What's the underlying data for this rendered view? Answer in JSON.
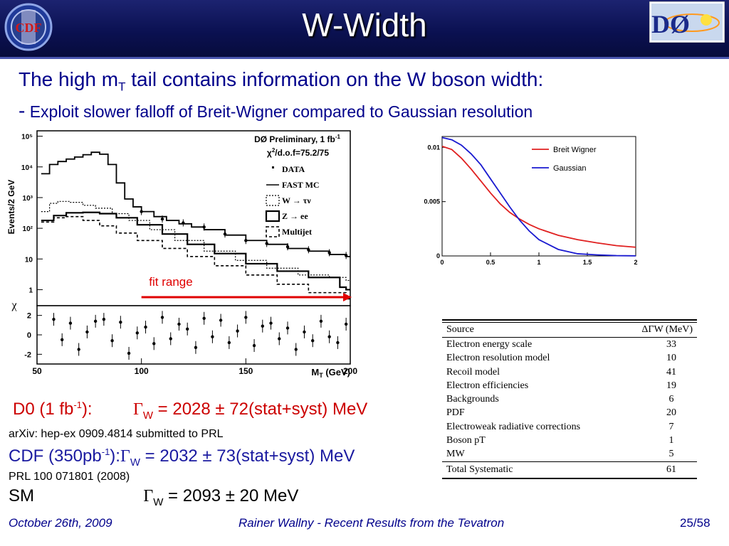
{
  "slide": {
    "title": "W-Width",
    "logo_left_text": "CDF",
    "logo_right_text": "DØ",
    "intro_line1_pre": "The high m",
    "intro_line1_sub": "T",
    "intro_line1_post": " tail contains information on the W boson width:",
    "intro_dash": "-",
    "intro_line2": "Exploit slower falloff of Breit-Wigner compared to Gaussian resolution",
    "fit_range_label": "fit range"
  },
  "results": {
    "d0_label": "D0 (1 fb",
    "d0_label_sup": "-1",
    "d0_label_end": "):",
    "d0_gamma": "Γ",
    "d0_gamma_sub": "W",
    "d0_value": " = 2028 ± 72(stat+syst) MeV",
    "d0_ref": "arXiv: hep-ex 0909.4814 submitted to PRL",
    "cdf_label": "CDF (350pb",
    "cdf_label_sup": "-1",
    "cdf_label_end": "):",
    "cdf_gamma": "Γ",
    "cdf_gamma_sub": "W",
    "cdf_value": " = 2032 ± 73(stat+syst) MeV",
    "cdf_ref": "PRL 100 071801 (2008)",
    "sm_label": "SM",
    "sm_gamma": "Γ",
    "sm_gamma_sub": "W",
    "sm_value": " = 2093 ± 20 MeV"
  },
  "footer": {
    "date": "October 26th, 2009",
    "center": "Rainer Wallny - Recent Results from the Tevatron",
    "page": "25/58"
  },
  "colors": {
    "title_bar": "#0b1152",
    "intro_text": "#00008b",
    "d0_result": "#cc0000",
    "cdf_result": "#1a1aa0",
    "breit_wigner": "#e02020",
    "gaussian": "#1a1ad0",
    "fit_arrow": "#e00000"
  },
  "chart_data": [
    {
      "type": "histogram",
      "title": "DØ Preliminary, 1 fb-1",
      "annotation": "χ2/d.o.f=75.2/75",
      "xlabel": "MT (GeV)",
      "ylabel": "Events/2 GeV",
      "xlim": [
        50,
        200
      ],
      "ylim_log": [
        0.3,
        150000
      ],
      "y_scale": "log",
      "x_ticks": [
        50,
        100,
        150,
        200
      ],
      "y_tick_labels": [
        "1",
        "10",
        "10²",
        "10³",
        "10⁴",
        "10⁵"
      ],
      "legend_placement": "top-right",
      "legend": [
        "DATA",
        "FAST MC",
        "W → τν",
        "Z → ee",
        "Multijet"
      ],
      "series": [
        {
          "name": "FAST MC",
          "x": [
            52,
            56,
            60,
            64,
            68,
            72,
            76,
            80,
            84,
            88,
            92,
            96,
            100,
            106,
            112,
            118,
            124,
            130,
            140,
            150,
            160,
            170,
            180,
            190,
            198
          ],
          "values": [
            6000,
            12000,
            15000,
            18000,
            21000,
            25000,
            30000,
            26000,
            12000,
            3000,
            900,
            500,
            350,
            240,
            180,
            140,
            110,
            90,
            60,
            40,
            30,
            22,
            18,
            14,
            12
          ]
        },
        {
          "name": "DATA",
          "x": [
            100,
            110,
            120,
            130,
            140,
            150,
            160,
            170,
            180,
            190,
            198
          ],
          "values": [
            350,
            200,
            150,
            110,
            65,
            40,
            32,
            25,
            20,
            16,
            13
          ]
        },
        {
          "name": "W → τν",
          "x": [
            52,
            56,
            60,
            66,
            72,
            78,
            86,
            94,
            104,
            116,
            130,
            145,
            160,
            175,
            190,
            198
          ],
          "values": [
            350,
            650,
            750,
            700,
            560,
            450,
            300,
            180,
            90,
            40,
            18,
            9,
            5,
            3,
            2.5,
            2
          ]
        },
        {
          "name": "Z → ee",
          "x": [
            52,
            58,
            64,
            72,
            80,
            88,
            98,
            110,
            122,
            135,
            150,
            165,
            180,
            195,
            198
          ],
          "values": [
            180,
            260,
            320,
            330,
            300,
            220,
            130,
            65,
            30,
            15,
            7,
            4,
            2.5,
            1.2,
            1
          ]
        },
        {
          "name": "Multijet",
          "x": [
            52,
            58,
            64,
            72,
            80,
            88,
            98,
            110,
            122,
            135,
            150,
            165,
            180,
            198
          ],
          "values": [
            160,
            220,
            240,
            180,
            120,
            70,
            40,
            22,
            12,
            6,
            3,
            1.5,
            0.8,
            0.5
          ]
        }
      ],
      "residual_panel": {
        "ylabel": "χ",
        "yticks": [
          2,
          0,
          -2
        ],
        "ylim": [
          -3,
          3
        ],
        "x": [
          58,
          62,
          66,
          70,
          74,
          78,
          82,
          86,
          90,
          94,
          98,
          102,
          106,
          110,
          114,
          118,
          122,
          126,
          130,
          134,
          138,
          142,
          146,
          150,
          154,
          158,
          162,
          166,
          170,
          174,
          178,
          182,
          186,
          190,
          194,
          198
        ],
        "values": [
          1.6,
          -0.5,
          1.2,
          -1.5,
          0.3,
          1.4,
          1.6,
          -0.6,
          1.3,
          -1.9,
          0.2,
          0.8,
          -0.9,
          1.8,
          -0.4,
          1.1,
          0.6,
          -1.3,
          1.7,
          -0.2,
          1.5,
          -0.8,
          0.4,
          1.8,
          -1.1,
          0.9,
          1.2,
          -0.4,
          0.7,
          -1.5,
          0.3,
          -0.6,
          1.4,
          -0.2,
          -0.8,
          1.1
        ]
      },
      "fit_range": [
        100,
        200
      ]
    },
    {
      "type": "line",
      "xlim": [
        0,
        2
      ],
      "ylim": [
        0,
        0.011
      ],
      "x_ticks": [
        0,
        0.5,
        1,
        1.5,
        2
      ],
      "y_ticks": [
        0,
        0.005,
        0.01
      ],
      "y_tick_labels": [
        "0",
        "0.005",
        "0.01"
      ],
      "legend_placement": "top-right",
      "series": [
        {
          "name": "Breit Wigner",
          "x": [
            0,
            0.1,
            0.2,
            0.3,
            0.4,
            0.5,
            0.6,
            0.7,
            0.8,
            0.9,
            1.0,
            1.2,
            1.4,
            1.6,
            1.8,
            2.0
          ],
          "values": [
            0.0101,
            0.0098,
            0.009,
            0.008,
            0.0069,
            0.0058,
            0.0048,
            0.004,
            0.0034,
            0.0029,
            0.0025,
            0.0019,
            0.0015,
            0.0012,
            0.00095,
            0.0008
          ]
        },
        {
          "name": "Gaussian",
          "x": [
            0,
            0.1,
            0.2,
            0.3,
            0.4,
            0.5,
            0.6,
            0.7,
            0.8,
            0.9,
            1.0,
            1.2,
            1.4,
            1.6,
            1.8,
            2.0
          ],
          "values": [
            0.0109,
            0.0107,
            0.0102,
            0.0094,
            0.0084,
            0.0071,
            0.0058,
            0.0045,
            0.0033,
            0.0023,
            0.0015,
            0.0006,
            0.0002,
            0.0001,
            3e-05,
            1e-05
          ]
        }
      ]
    },
    {
      "type": "table",
      "columns": [
        "Source",
        "ΔΓW (MeV)"
      ],
      "rows": [
        [
          "Electron energy scale",
          "33"
        ],
        [
          "Electron resolution model",
          "10"
        ],
        [
          "Recoil model",
          "41"
        ],
        [
          "Electron efficiencies",
          "19"
        ],
        [
          "Backgrounds",
          "6"
        ],
        [
          "PDF",
          "20"
        ],
        [
          "Electroweak radiative corrections",
          "7"
        ],
        [
          "Boson pT",
          "1"
        ],
        [
          "MW",
          "5"
        ]
      ],
      "total": [
        "Total Systematic",
        "61"
      ]
    }
  ]
}
